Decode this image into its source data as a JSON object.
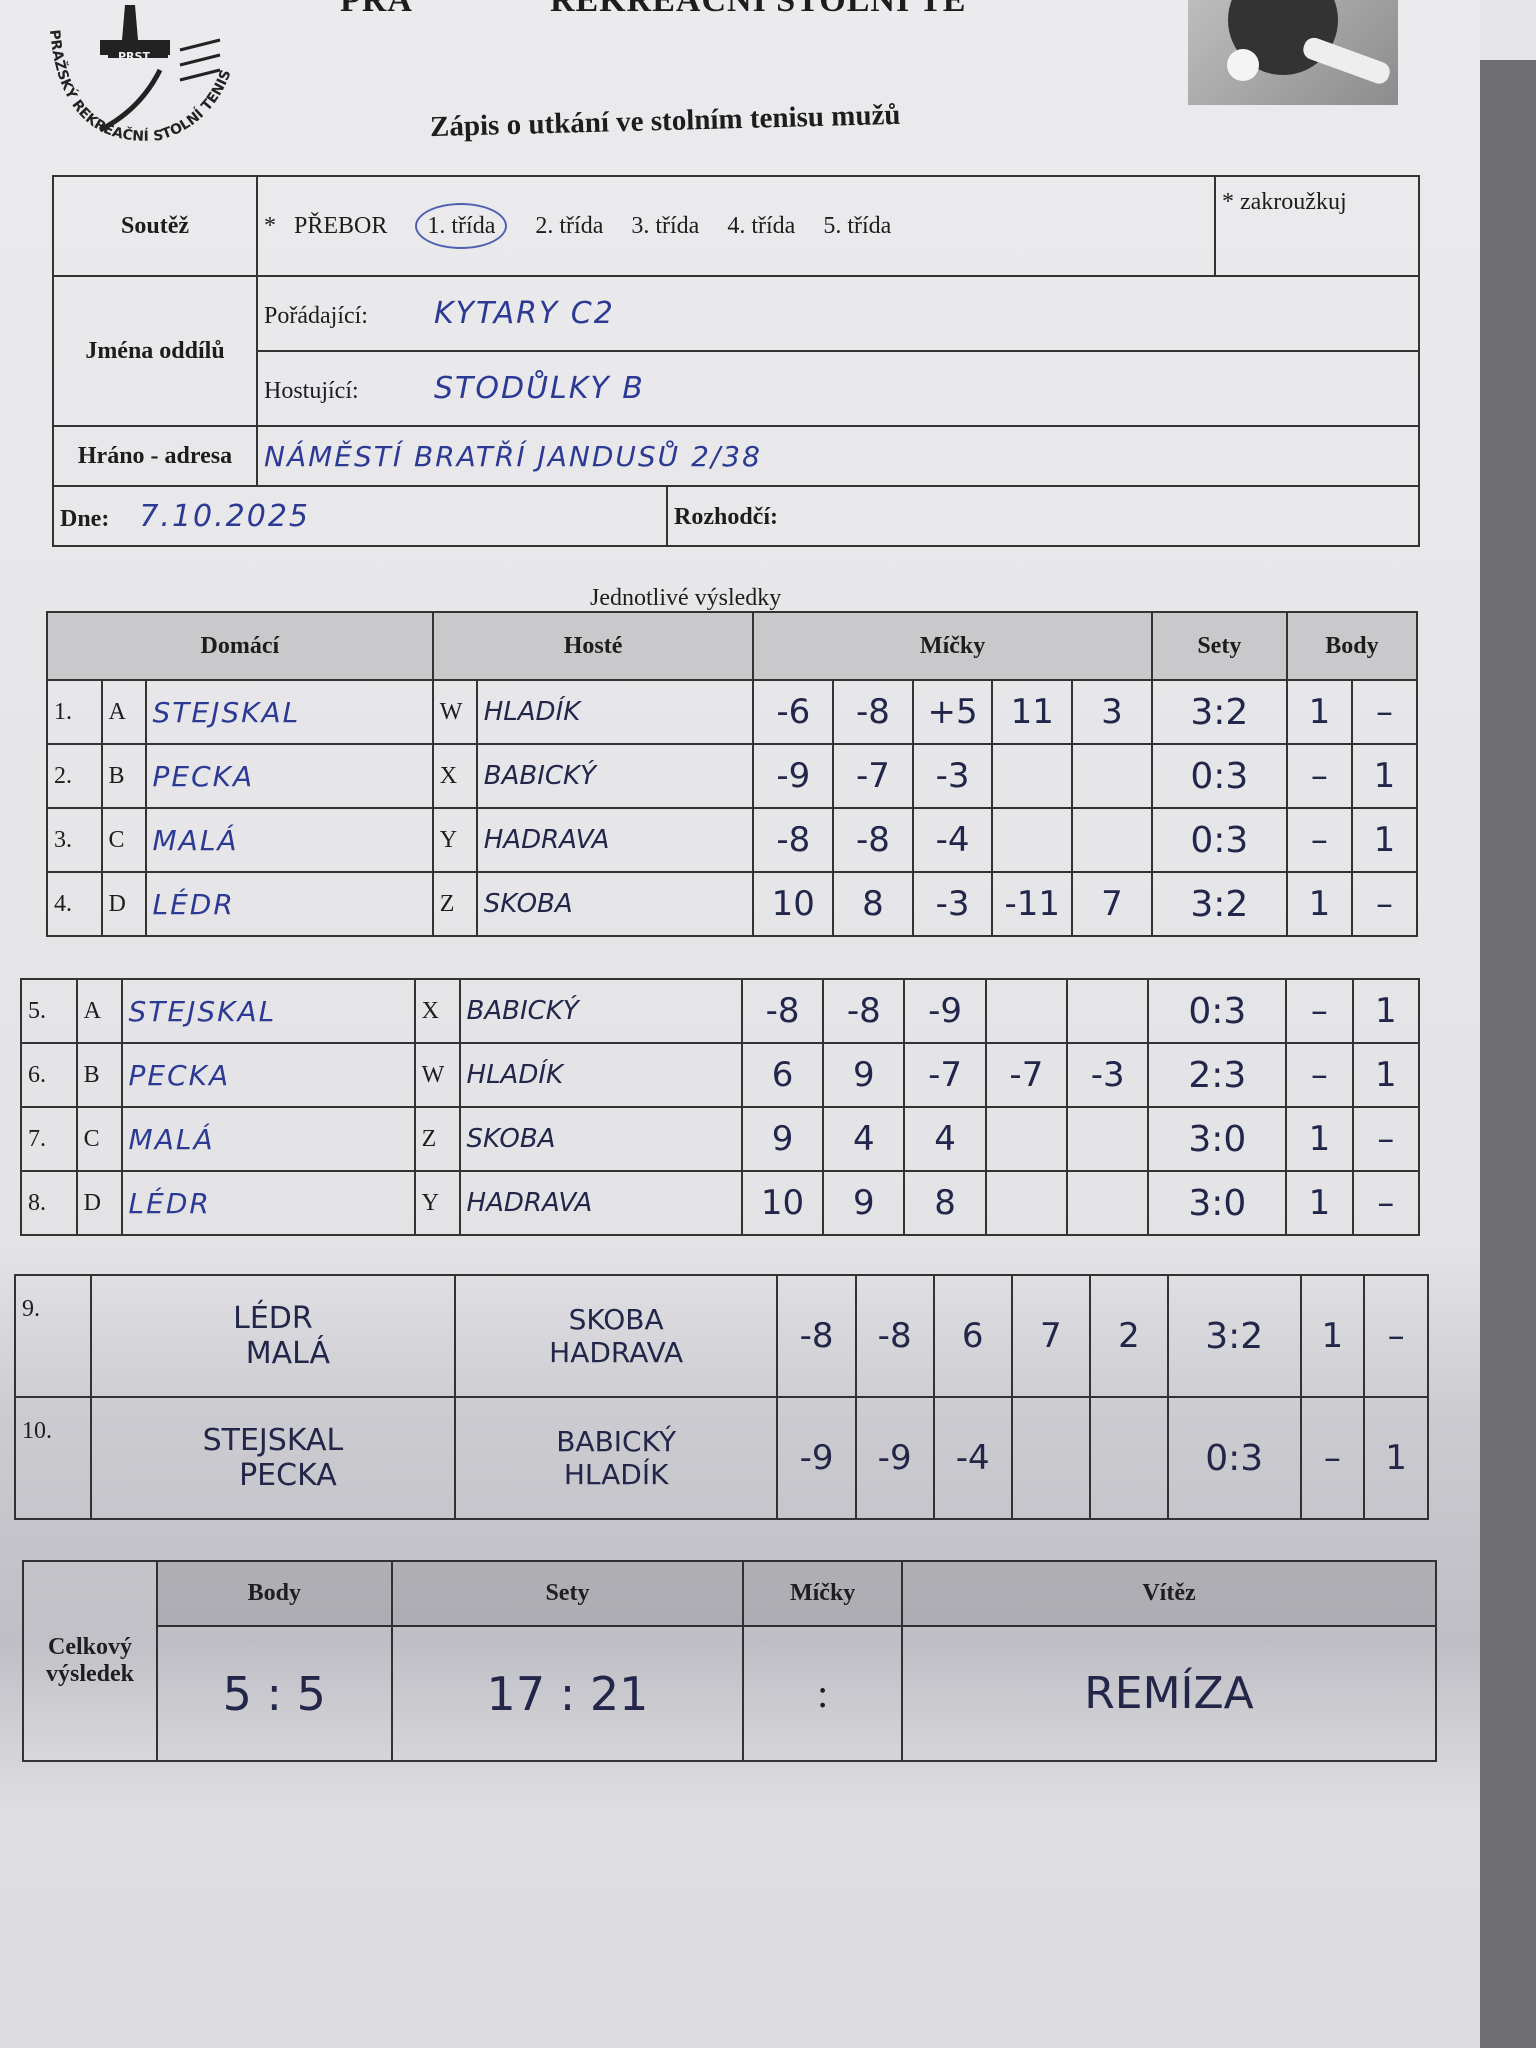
{
  "header": {
    "heading_left": "PRA",
    "heading_right": "REKREAČNÍ STOLNÍ TE",
    "logo_text": "PRAŽSKÝ REKREAČNÍ STOLNÍ TENIS",
    "logo_abbr": "PRST",
    "title": "Zápis o utkání ve stolním tenisu mužů"
  },
  "info": {
    "competition_label": "Soutěž",
    "star": "*",
    "classes": [
      "PŘEBOR",
      "1. třída",
      "2. třída",
      "3. třída",
      "4. třída",
      "5. třída"
    ],
    "circled_class": "1. třída",
    "circle_note": "* zakroužkuj",
    "teams_label": "Jména oddílů",
    "host_label": "Pořádající:",
    "host_value": "KYTARY C2",
    "guest_label": "Hostující:",
    "guest_value": "STODŮLKY B",
    "address_label": "Hráno - adresa",
    "address_value": "NÁMĚSTÍ BRATŘÍ JANDUSŮ 2/38",
    "date_label": "Dne:",
    "date_value": "7.10.2025",
    "referee_label": "Rozhodčí:",
    "referee_value": ""
  },
  "results": {
    "caption": "Jednotlivé výsledky",
    "headers": {
      "home": "Domácí",
      "guests": "Hosté",
      "balls": "Míčky",
      "sets": "Sety",
      "points": "Body"
    },
    "singles": [
      {
        "no": "1.",
        "hl": "A",
        "home": "STEJSKAL",
        "gl": "W",
        "guest": "HLADÍK",
        "balls": [
          "-6",
          "-8",
          "+5",
          "11",
          "3"
        ],
        "sets": "3:2",
        "p": [
          "1",
          "–"
        ]
      },
      {
        "no": "2.",
        "hl": "B",
        "home": "PECKA",
        "gl": "X",
        "guest": "BABICKÝ",
        "balls": [
          "-9",
          "-7",
          "-3",
          "",
          ""
        ],
        "sets": "0:3",
        "p": [
          "–",
          "1"
        ]
      },
      {
        "no": "3.",
        "hl": "C",
        "home": "MALÁ",
        "gl": "Y",
        "guest": "HADRAVA",
        "balls": [
          "-8",
          "-8",
          "-4",
          "",
          ""
        ],
        "sets": "0:3",
        "p": [
          "–",
          "1"
        ]
      },
      {
        "no": "4.",
        "hl": "D",
        "home": "LÉDR",
        "gl": "Z",
        "guest": "SKOBA",
        "balls": [
          "10",
          "8",
          "-3",
          "-11",
          "7"
        ],
        "sets": "3:2",
        "p": [
          "1",
          "–"
        ]
      },
      {
        "no": "5.",
        "hl": "A",
        "home": "STEJSKAL",
        "gl": "X",
        "guest": "BABICKÝ",
        "balls": [
          "-8",
          "-8",
          "-9",
          "",
          ""
        ],
        "sets": "0:3",
        "p": [
          "–",
          "1"
        ]
      },
      {
        "no": "6.",
        "hl": "B",
        "home": "PECKA",
        "gl": "W",
        "guest": "HLADÍK",
        "balls": [
          "6",
          "9",
          "-7",
          "-7",
          "-3"
        ],
        "sets": "2:3",
        "p": [
          "–",
          "1"
        ]
      },
      {
        "no": "7.",
        "hl": "C",
        "home": "MALÁ",
        "gl": "Z",
        "guest": "SKOBA",
        "balls": [
          "9",
          "4",
          "4",
          "",
          ""
        ],
        "sets": "3:0",
        "p": [
          "1",
          "–"
        ]
      },
      {
        "no": "8.",
        "hl": "D",
        "home": "LÉDR",
        "gl": "Y",
        "guest": "HADRAVA",
        "balls": [
          "10",
          "9",
          "8",
          "",
          ""
        ],
        "sets": "3:0",
        "p": [
          "1",
          "–"
        ]
      }
    ],
    "doubles": [
      {
        "no": "9.",
        "home": [
          "LÉDR",
          "MALÁ"
        ],
        "guest": [
          "SKOBA",
          "HADRAVA"
        ],
        "balls": [
          "-8",
          "-8",
          "6",
          "7",
          "2"
        ],
        "sets": "3:2",
        "p": [
          "1",
          "–"
        ]
      },
      {
        "no": "10.",
        "home": [
          "STEJSKAL",
          "PECKA"
        ],
        "guest": [
          "BABICKÝ",
          "HLADÍK"
        ],
        "balls": [
          "-9",
          "-9",
          "-4",
          "",
          ""
        ],
        "sets": "0:3",
        "p": [
          "–",
          "1"
        ]
      }
    ]
  },
  "summary": {
    "label": "Celkový výsledek",
    "headers": {
      "points": "Body",
      "sets": "Sety",
      "balls": "Míčky",
      "winner": "Vítěz"
    },
    "points": "5 : 5",
    "sets": "17 : 21",
    "balls": ":",
    "winner": "REMÍZA"
  },
  "colors": {
    "ink": "#2c3a94",
    "paper": "#e6e6e8"
  }
}
